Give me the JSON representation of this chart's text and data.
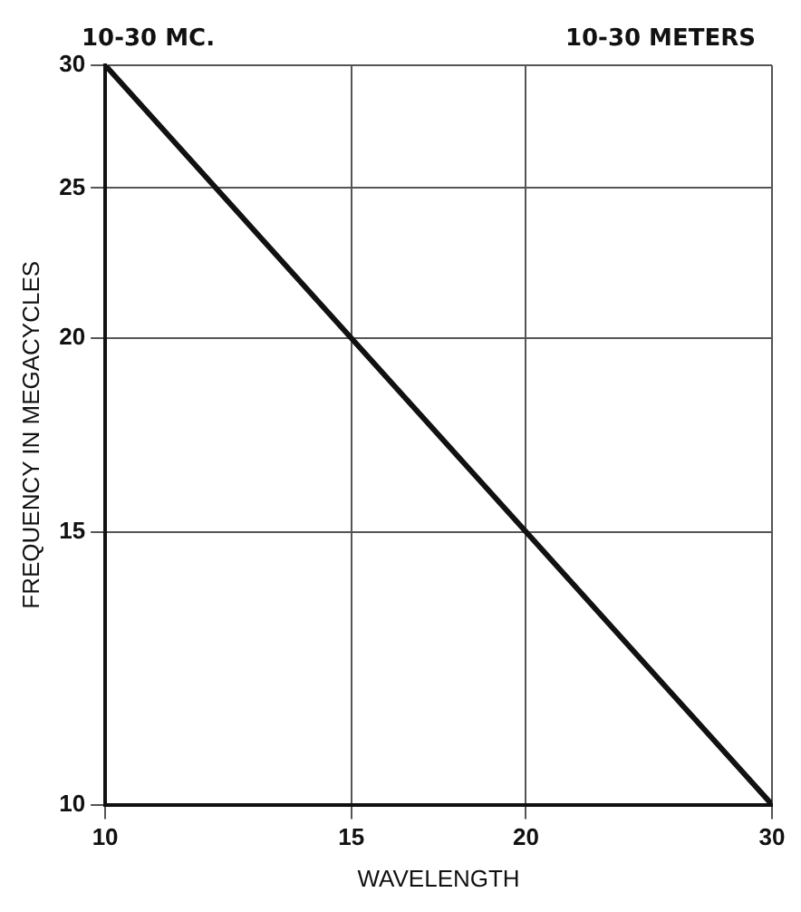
{
  "chart_data": {
    "type": "line",
    "xlabel": "WAVELENGTH",
    "ylabel": "FREQUENCY IN MEGACYCLES",
    "annotations": [
      "10-30 MC.",
      "10-30 METERS"
    ],
    "x": [
      10,
      15,
      20,
      30
    ],
    "series": [
      {
        "color": "#111111",
        "values": [
          30,
          20,
          15,
          10
        ]
      }
    ],
    "log": "xy",
    "xlim": [
      10,
      30
    ],
    "xticks": [
      10,
      15,
      20,
      30
    ],
    "ylim": [
      10,
      30
    ],
    "yticks": [
      10,
      15,
      20,
      25,
      30
    ],
    "grid": true,
    "legend": false,
    "marker": "none",
    "line_style": "solid"
  }
}
